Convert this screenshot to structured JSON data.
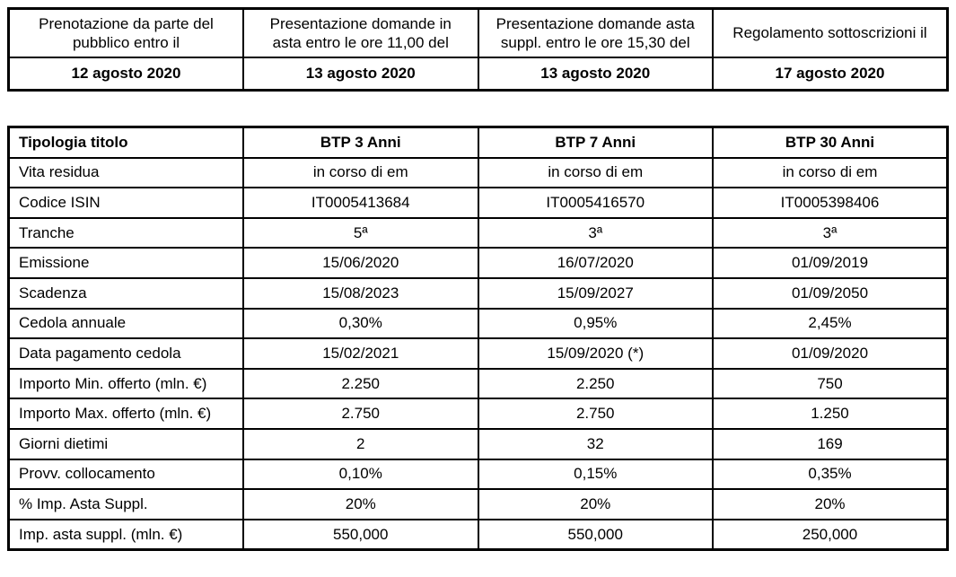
{
  "colors": {
    "border": "#000000",
    "text": "#000000",
    "background": "#ffffff"
  },
  "schedule_table": {
    "columns": [
      {
        "header": "Prenotazione da parte del pubblico entro il",
        "date": "12 agosto 2020"
      },
      {
        "header": "Presentazione domande in asta entro le ore 11,00 del",
        "date": "13 agosto 2020"
      },
      {
        "header": "Presentazione domande asta suppl. entro le ore 15,30 del",
        "date": "13 agosto 2020"
      },
      {
        "header": "Regolamento sottoscrizioni il",
        "date": "17 agosto 2020"
      }
    ]
  },
  "bond_table": {
    "header_row": {
      "label": "Tipologia titolo",
      "values": [
        "BTP 3 Anni",
        "BTP 7 Anni",
        "BTP 30 Anni"
      ]
    },
    "rows": [
      {
        "label": "Vita residua",
        "values": [
          "in corso di em",
          "in corso di em",
          "in corso di em"
        ]
      },
      {
        "label": "Codice ISIN",
        "values": [
          "IT0005413684",
          "IT0005416570",
          "IT0005398406"
        ]
      },
      {
        "label": "Tranche",
        "values": [
          "5ª",
          "3ª",
          "3ª"
        ]
      },
      {
        "label": "Emissione",
        "values": [
          "15/06/2020",
          "16/07/2020",
          "01/09/2019"
        ]
      },
      {
        "label": "Scadenza",
        "values": [
          "15/08/2023",
          "15/09/2027",
          "01/09/2050"
        ]
      },
      {
        "label": "Cedola annuale",
        "values": [
          "0,30%",
          "0,95%",
          "2,45%"
        ]
      },
      {
        "label": "Data pagamento cedola",
        "values": [
          "15/02/2021",
          "15/09/2020 (*)",
          "01/09/2020"
        ]
      },
      {
        "label": "Importo Min. offerto (mln. €)",
        "values": [
          "2.250",
          "2.250",
          "750"
        ]
      },
      {
        "label": "Importo Max. offerto (mln. €)",
        "values": [
          "2.750",
          "2.750",
          "1.250"
        ]
      },
      {
        "label": "Giorni dietimi",
        "values": [
          "2",
          "32",
          "169"
        ]
      },
      {
        "label": "Provv. collocamento",
        "values": [
          "0,10%",
          "0,15%",
          "0,35%"
        ]
      },
      {
        "label": "% Imp. Asta Suppl.",
        "values": [
          "20%",
          "20%",
          "20%"
        ]
      },
      {
        "label": "Imp. asta suppl. (mln. €)",
        "values": [
          "550,000",
          "550,000",
          "250,000"
        ]
      }
    ]
  }
}
